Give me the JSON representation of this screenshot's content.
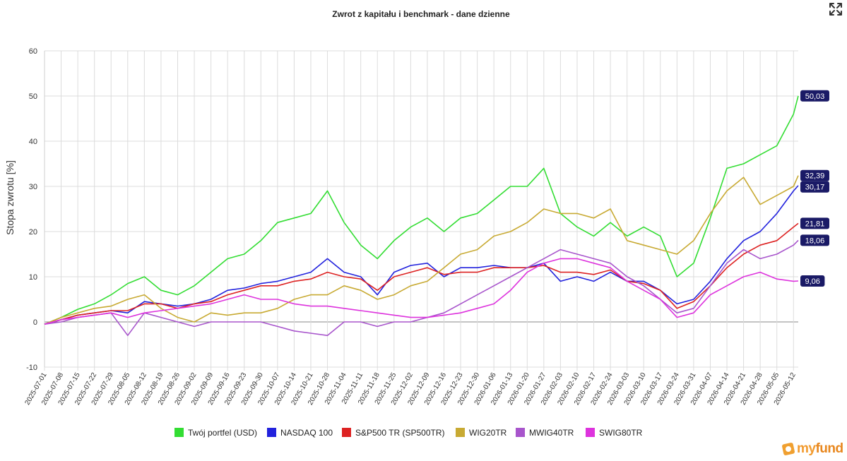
{
  "chart_data": {
    "type": "line",
    "title": "Zwrot z kapitału i benchmark - dane dzienne",
    "ylabel": "Stopa zwrotu [%]",
    "xlabel": "",
    "ylim": [
      -10,
      60
    ],
    "yticks": [
      "-10",
      "0",
      "10",
      "20",
      "30",
      "40",
      "50",
      "60"
    ],
    "grid": true,
    "legend_position": "bottom",
    "x_start": "2025-07-01",
    "x_end": "2026-05-14",
    "x_tick_labels": [
      "2025-07-01",
      "2025-07-08",
      "2025-07-15",
      "2025-07-22",
      "2025-07-29",
      "2025-08-05",
      "2025-08-12",
      "2025-08-19",
      "2025-08-26",
      "2025-09-02",
      "2025-09-09",
      "2025-09-16",
      "2025-09-23",
      "2025-09-30",
      "2025-10-07",
      "2025-10-14",
      "2025-10-21",
      "2025-10-28",
      "2025-11-04",
      "2025-11-11",
      "2025-11-18",
      "2025-11-25",
      "2025-12-02",
      "2025-12-09",
      "2025-12-16",
      "2025-12-23",
      "2025-12-30",
      "2026-01-06",
      "2026-01-13",
      "2026-01-20",
      "2026-01-27",
      "2026-02-03",
      "2026-02-10",
      "2026-02-17",
      "2026-02-24",
      "2026-03-03",
      "2026-03-10",
      "2026-03-17",
      "2026-03-24",
      "2026-03-31",
      "2026-04-07",
      "2026-04-14",
      "2026-04-21",
      "2026-04-28",
      "2026-05-05",
      "2026-05-12"
    ],
    "x": [
      "2025-07-01",
      "2025-07-08",
      "2025-07-15",
      "2025-07-22",
      "2025-07-29",
      "2025-08-05",
      "2025-08-12",
      "2025-08-19",
      "2025-08-26",
      "2025-09-02",
      "2025-09-09",
      "2025-09-16",
      "2025-09-23",
      "2025-09-30",
      "2025-10-07",
      "2025-10-14",
      "2025-10-21",
      "2025-10-28",
      "2025-11-04",
      "2025-11-11",
      "2025-11-18",
      "2025-11-25",
      "2025-12-02",
      "2025-12-09",
      "2025-12-16",
      "2025-12-23",
      "2025-12-30",
      "2026-01-06",
      "2026-01-13",
      "2026-01-20",
      "2026-01-27",
      "2026-02-03",
      "2026-02-10",
      "2026-02-17",
      "2026-02-24",
      "2026-03-03",
      "2026-03-10",
      "2026-03-17",
      "2026-03-24",
      "2026-03-31",
      "2026-04-07",
      "2026-04-14",
      "2026-04-21",
      "2026-04-28",
      "2026-05-05",
      "2026-05-12",
      "2026-05-14"
    ],
    "series": [
      {
        "name": "Twój portfel (USD)",
        "color": "#33dd33",
        "end_label": "50,03",
        "values": [
          -0.5,
          1.0,
          2.8,
          4.0,
          6.0,
          8.5,
          10.0,
          7.0,
          6.0,
          8.0,
          11.0,
          14.0,
          15.0,
          18.0,
          22.0,
          23.0,
          24.0,
          29.0,
          22.0,
          17.0,
          14.0,
          18.0,
          21.0,
          23.0,
          20.0,
          23.0,
          24.0,
          27.0,
          30.0,
          30.0,
          34.0,
          24.0,
          21.0,
          19.0,
          22.0,
          19.0,
          21.0,
          19.0,
          10.0,
          13.0,
          23.0,
          34.0,
          35.0,
          37.0,
          39.0,
          46.0,
          50.03
        ]
      },
      {
        "name": "NASDAQ 100",
        "color": "#2222dd",
        "end_label": "30,17",
        "values": [
          -0.5,
          0.5,
          1.5,
          2.0,
          2.5,
          2.0,
          4.5,
          4.0,
          3.5,
          4.0,
          5.0,
          7.0,
          7.5,
          8.5,
          9.0,
          10.0,
          11.0,
          14.0,
          11.0,
          10.0,
          6.0,
          11.0,
          12.5,
          13.0,
          10.0,
          12.0,
          12.0,
          12.5,
          12.0,
          12.0,
          13.0,
          9.0,
          10.0,
          9.0,
          11.0,
          9.0,
          9.0,
          7.0,
          4.0,
          5.0,
          9.0,
          14.0,
          18.0,
          20.0,
          24.0,
          29.0,
          30.17
        ]
      },
      {
        "name": "S&P500 TR (SP500TR)",
        "color": "#dd2222",
        "end_label": "21,81",
        "values": [
          -0.5,
          0.5,
          1.5,
          2.0,
          2.5,
          2.5,
          4.0,
          4.0,
          3.0,
          4.0,
          4.5,
          6.0,
          7.0,
          8.0,
          8.0,
          9.0,
          9.5,
          11.0,
          10.0,
          9.5,
          7.0,
          10.0,
          11.0,
          12.0,
          10.5,
          11.0,
          11.0,
          12.0,
          12.0,
          12.0,
          12.5,
          11.0,
          11.0,
          10.5,
          11.5,
          9.0,
          8.5,
          7.0,
          3.0,
          4.5,
          8.0,
          12.0,
          15.0,
          17.0,
          18.0,
          21.0,
          21.81
        ]
      },
      {
        "name": "WIG20TR",
        "color": "#c8aa33",
        "end_label": "32,39",
        "values": [
          -0.5,
          1.0,
          2.0,
          3.0,
          3.5,
          5.0,
          6.0,
          3.0,
          1.0,
          0.0,
          2.0,
          1.5,
          2.0,
          2.0,
          3.0,
          5.0,
          6.0,
          6.0,
          8.0,
          7.0,
          5.0,
          6.0,
          8.0,
          9.0,
          12.0,
          15.0,
          16.0,
          19.0,
          20.0,
          22.0,
          25.0,
          24.0,
          24.0,
          23.0,
          25.0,
          18.0,
          17.0,
          16.0,
          15.0,
          18.0,
          24.0,
          29.0,
          32.0,
          26.0,
          28.0,
          30.0,
          32.39
        ]
      },
      {
        "name": "MWIG40TR",
        "color": "#a855cc",
        "end_label": "18,06",
        "values": [
          -0.5,
          0.0,
          1.0,
          1.5,
          2.0,
          -3.0,
          2.0,
          1.0,
          0.0,
          -1.0,
          0.0,
          0.0,
          0.0,
          0.0,
          -1.0,
          -2.0,
          -2.5,
          -3.0,
          0.0,
          0.0,
          -1.0,
          0.0,
          0.0,
          1.0,
          2.0,
          4.0,
          6.0,
          8.0,
          10.0,
          12.0,
          14.0,
          16.0,
          15.0,
          14.0,
          13.0,
          10.0,
          8.0,
          5.0,
          2.0,
          3.0,
          8.0,
          13.0,
          16.0,
          14.0,
          15.0,
          17.0,
          18.06
        ]
      },
      {
        "name": "SWIG80TR",
        "color": "#dd33dd",
        "end_label": "9,06",
        "values": [
          -0.5,
          0.5,
          1.0,
          1.5,
          2.0,
          1.0,
          2.0,
          2.5,
          3.0,
          3.5,
          4.0,
          5.0,
          6.0,
          5.0,
          5.0,
          4.0,
          3.5,
          3.5,
          3.0,
          2.5,
          2.0,
          1.5,
          1.0,
          1.0,
          1.5,
          2.0,
          3.0,
          4.0,
          7.0,
          11.0,
          13.0,
          14.0,
          14.0,
          13.0,
          12.0,
          9.0,
          7.0,
          5.0,
          1.0,
          2.0,
          6.0,
          8.0,
          10.0,
          11.0,
          9.5,
          9.0,
          9.06
        ]
      }
    ]
  },
  "logo": {
    "text_left": "my",
    "text_right": "fund"
  },
  "icons": {
    "expand": "expand-icon"
  }
}
